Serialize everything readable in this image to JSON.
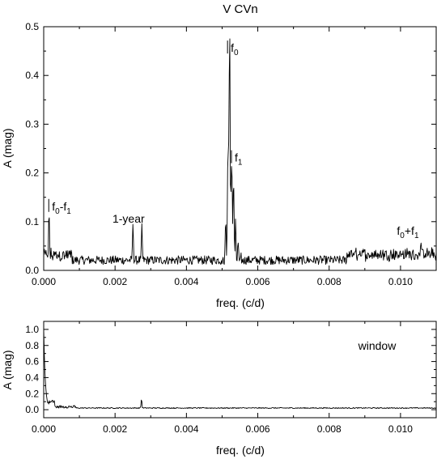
{
  "chart_data": [
    {
      "type": "line",
      "title": "V CVn",
      "xlabel": "freq. (c/d)",
      "ylabel": "A (mag)",
      "xlim": [
        0.0,
        0.011
      ],
      "ylim": [
        0.0,
        0.5
      ],
      "xticks": [
        0.0,
        0.002,
        0.004,
        0.006,
        0.008,
        0.01
      ],
      "xtick_labels": [
        "0.000",
        "0.002",
        "0.004",
        "0.006",
        "0.008",
        "0.010"
      ],
      "yticks": [
        0.0,
        0.1,
        0.2,
        0.3,
        0.4,
        0.5
      ],
      "ytick_labels": [
        "0.0",
        "0.1",
        "0.2",
        "0.3",
        "0.4",
        "0.5"
      ],
      "grid": false,
      "annotations": [
        {
          "label": "f",
          "sub": "0",
          "x": 0.00522,
          "y": 0.445
        },
        {
          "label": "f",
          "sub": "1",
          "x": 0.00533,
          "y": 0.22
        },
        {
          "label": "f",
          "sub": "0",
          "mid": "-f",
          "sub2": "1",
          "x": 0.00021,
          "y": 0.12
        },
        {
          "label": "1-year",
          "x": 0.00274,
          "y": 0.095
        },
        {
          "label": "f",
          "sub": "0",
          "mid": "+f",
          "sub2": "1",
          "x": 0.01076,
          "y": 0.07
        }
      ],
      "peaks": [
        {
          "x": 0.00015,
          "y": 0.12
        },
        {
          "x": 0.0025,
          "y": 0.095
        },
        {
          "x": 0.00275,
          "y": 0.096
        },
        {
          "x": 0.00521,
          "y": 0.44
        },
        {
          "x": 0.00517,
          "y": 0.3
        },
        {
          "x": 0.00527,
          "y": 0.24
        },
        {
          "x": 0.00532,
          "y": 0.19
        },
        {
          "x": 0.0051,
          "y": 0.12
        },
        {
          "x": 0.00538,
          "y": 0.1
        },
        {
          "x": 0.00545,
          "y": 0.06
        },
        {
          "x": 0.01057,
          "y": 0.06
        }
      ]
    },
    {
      "type": "line",
      "xlabel": "freq. (c/d)",
      "ylabel": "A (mag)",
      "xlim": [
        0.0,
        0.011
      ],
      "ylim": [
        -0.1,
        1.1
      ],
      "xticks": [
        0.0,
        0.002,
        0.004,
        0.006,
        0.008,
        0.01
      ],
      "xtick_labels": [
        "0.000",
        "0.002",
        "0.004",
        "0.006",
        "0.008",
        "0.010"
      ],
      "yticks": [
        0.0,
        0.2,
        0.4,
        0.6,
        0.8,
        1.0
      ],
      "ytick_labels": [
        "0.0",
        "0.2",
        "0.4",
        "0.6",
        "0.8",
        "1.0"
      ],
      "grid": false,
      "legend_text": "window",
      "peaks": [
        {
          "x": 0.0,
          "y": 1.0
        },
        {
          "x": 5e-05,
          "y": 0.45
        },
        {
          "x": 0.0002,
          "y": 0.1
        },
        {
          "x": 0.00274,
          "y": 0.13
        }
      ]
    }
  ]
}
